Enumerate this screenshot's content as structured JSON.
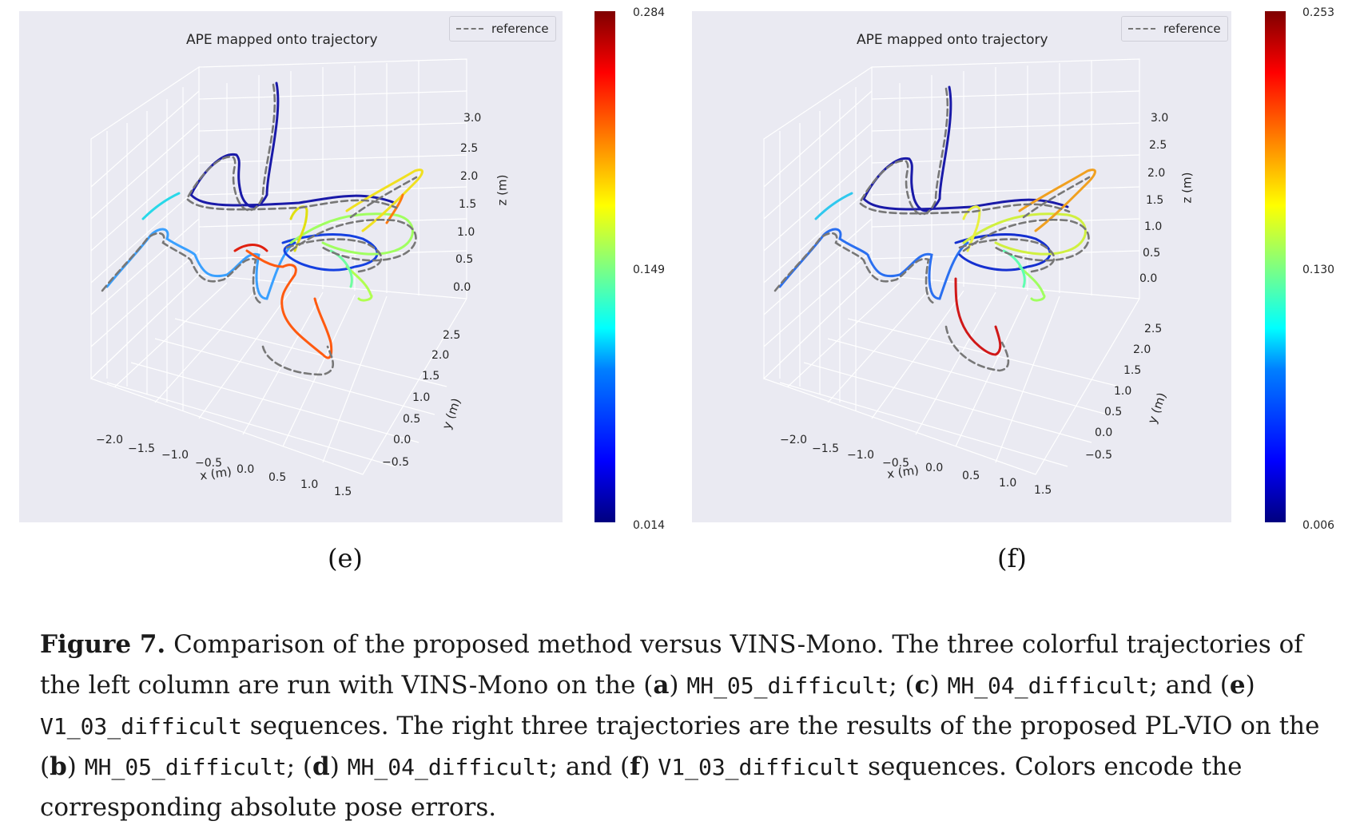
{
  "figure": {
    "panels": [
      {
        "id": "e",
        "title": "APE mapped onto trajectory",
        "legend": "reference",
        "colorbar": {
          "max": "0.284",
          "mid": "0.149",
          "min": "0.014"
        },
        "z_ticks": [
          "3.0",
          "2.5",
          "2.0",
          "1.5",
          "1.0",
          "0.5",
          "0.0"
        ],
        "y_ticks": [
          "2.5",
          "2.0",
          "1.5",
          "1.0",
          "0.5",
          "0.0",
          "−0.5"
        ],
        "x_ticks": [
          "−2.0",
          "−1.5",
          "−1.0",
          "−0.5",
          "0.0",
          "0.5",
          "1.0",
          "1.5"
        ],
        "x_label": "x (m)",
        "y_label": "y (m)",
        "z_label": "z (m)",
        "subcaption": "(e)"
      },
      {
        "id": "f",
        "title": "APE mapped onto trajectory",
        "legend": "reference",
        "colorbar": {
          "max": "0.253",
          "mid": "0.130",
          "min": "0.006"
        },
        "z_ticks": [
          "3.0",
          "2.5",
          "2.0",
          "1.5",
          "1.0",
          "0.5",
          "0.0"
        ],
        "y_ticks": [
          "2.5",
          "2.0",
          "1.5",
          "1.0",
          "0.5",
          "0.0",
          "−0.5"
        ],
        "x_ticks": [
          "−2.0",
          "−1.5",
          "−1.0",
          "−0.5",
          "0.0",
          "0.5",
          "1.0",
          "1.5"
        ],
        "x_label": "x (m)",
        "y_label": "y (m)",
        "z_label": "z (m)",
        "subcaption": "(f)"
      }
    ],
    "caption": {
      "label": "Figure 7.",
      "t1": " Comparison of the proposed method versus VINS-Mono. The three colorful trajectories of the left column are run with VINS-Mono on the (",
      "a": "a",
      "t2": ") ",
      "seq1": "MH_05_difficult",
      "t3": "; (",
      "c": "c",
      "t4": ") ",
      "seq2": "MH_04_difficult",
      "t5": "; and (",
      "e": "e",
      "t6": ") ",
      "seq3": "V1_03_difficult",
      "t7": " sequences. The right three trajectories are the results of the proposed PL-VIO on the (",
      "b": "b",
      "t8": ") ",
      "seq4": "MH_05_difficult",
      "t9": "; (",
      "d": "d",
      "t10": ") ",
      "seq5": "MH_04_difficult",
      "t11": "; and (",
      "f": "f",
      "t12": ") ",
      "seq6": "V1_03_difficult",
      "t13": " sequences. Colors encode the corresponding absolute pose errors."
    }
  }
}
